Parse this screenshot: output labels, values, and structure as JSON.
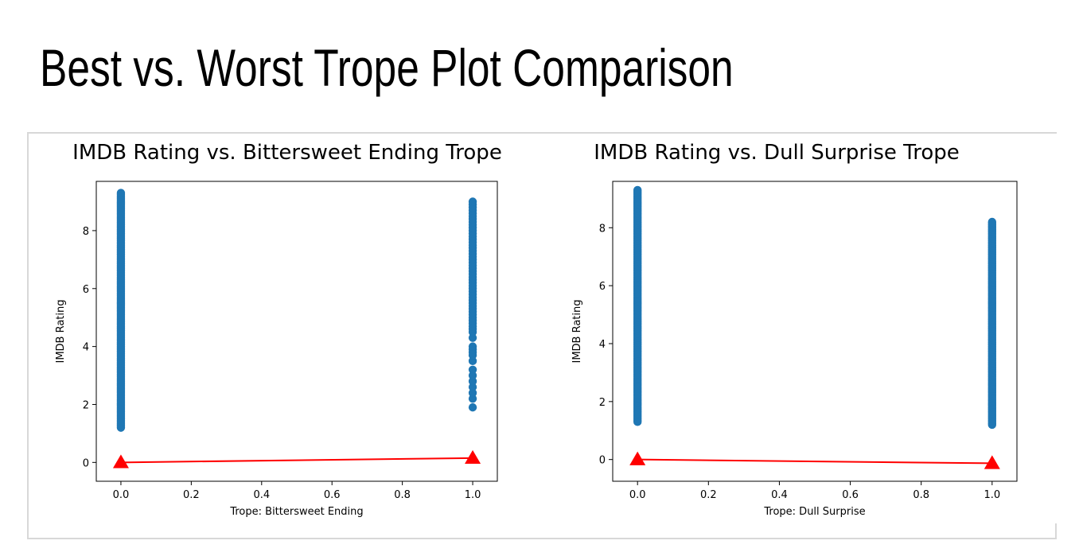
{
  "page": {
    "title": "Best vs. Worst Trope Plot Comparison"
  },
  "colors": {
    "scatter": "#1f77b4",
    "trend": "#ff0000",
    "axis": "#000000",
    "frame": "#d8d8d8"
  },
  "chart_data": [
    {
      "type": "scatter",
      "title": "IMDB Rating vs. Bittersweet Ending Trope",
      "xlabel": "Trope: Bittersweet Ending",
      "ylabel": "IMDB Rating",
      "xlim": [
        -0.07,
        1.07
      ],
      "ylim": [
        -0.65,
        9.7
      ],
      "xticks": [
        "0.0",
        "0.2",
        "0.4",
        "0.6",
        "0.8",
        "1.0"
      ],
      "xtick_values": [
        0,
        0.2,
        0.4,
        0.6,
        0.8,
        1.0
      ],
      "yticks": [
        "0",
        "2",
        "4",
        "6",
        "8"
      ],
      "ytick_values": [
        0,
        2,
        4,
        6,
        8
      ],
      "grid": false,
      "series": [
        {
          "x": 0,
          "y_min": 1.2,
          "y_max": 9.3,
          "dense": true
        },
        {
          "x": 1,
          "y_values": [
            1.9,
            2.2,
            2.4,
            2.6,
            2.8,
            3.0,
            3.2,
            3.5,
            3.7,
            3.8,
            3.9,
            4.0,
            4.3,
            4.5,
            4.6,
            4.7,
            4.8,
            4.9,
            5.0,
            5.1,
            5.2,
            5.3,
            5.4,
            5.5,
            5.6,
            5.7,
            5.8,
            5.9,
            6.0,
            6.1,
            6.2,
            6.3,
            6.4,
            6.5,
            6.6,
            6.7,
            6.8,
            6.9,
            7.0,
            7.1,
            7.2,
            7.3,
            7.4,
            7.5,
            7.6,
            7.7,
            7.8,
            7.9,
            8.0,
            8.1,
            8.2,
            8.3,
            8.4,
            8.5,
            8.6,
            8.7,
            8.8,
            8.9,
            9.0
          ]
        }
      ],
      "trend_line": {
        "x": [
          0,
          1
        ],
        "y": [
          0.0,
          0.15
        ],
        "marker": "triangle"
      }
    },
    {
      "type": "scatter",
      "title": "IMDB Rating vs. Dull Surprise Trope",
      "xlabel": "Trope: Dull Surprise",
      "ylabel": "IMDB Rating",
      "xlim": [
        -0.07,
        1.07
      ],
      "ylim": [
        -0.75,
        9.6
      ],
      "xticks": [
        "0.0",
        "0.2",
        "0.4",
        "0.6",
        "0.8",
        "1.0"
      ],
      "xtick_values": [
        0,
        0.2,
        0.4,
        0.6,
        0.8,
        1.0
      ],
      "yticks": [
        "0",
        "2",
        "4",
        "6",
        "8"
      ],
      "ytick_values": [
        0,
        2,
        4,
        6,
        8
      ],
      "grid": false,
      "series": [
        {
          "x": 0,
          "y_min": 1.3,
          "y_max": 9.3,
          "dense": true
        },
        {
          "x": 1,
          "y_min": 1.2,
          "y_max": 8.2,
          "dense": true
        }
      ],
      "trend_line": {
        "x": [
          0,
          1
        ],
        "y": [
          0.0,
          -0.13
        ],
        "marker": "triangle"
      }
    }
  ]
}
